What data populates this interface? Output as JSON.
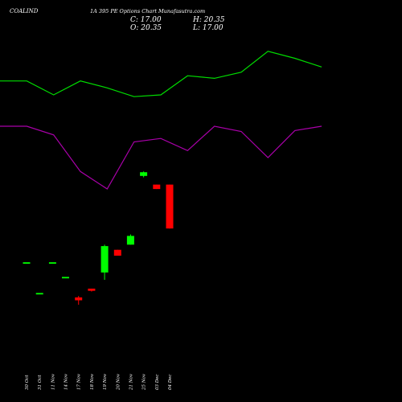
{
  "header": {
    "symbol": "COALIND",
    "title": "1A 395 PE Options  Chart Munafasutra.com",
    "close_label": "C: 17.00",
    "high_label": "H: 20.35",
    "open_label": "O: 20.35",
    "low_label": "L: 17.00"
  },
  "colors": {
    "background": "#000000",
    "up": "#00ff00",
    "down": "#ff0000",
    "text": "#ffffff",
    "indicator_upper": "#00dd00",
    "indicator_lower": "#aa00aa"
  },
  "chart_data": [
    {
      "type": "line",
      "title": "",
      "series": [
        {
          "color": "#00dd00",
          "values": [
            9.2,
            9.2,
            8.4,
            9.2,
            8.8,
            8.3,
            8.4,
            9.5,
            9.35,
            9.7,
            10.9,
            10.5,
            10.0
          ]
        },
        {
          "color": "#aa00aa",
          "values": [
            6.6,
            6.6,
            6.1,
            4.0,
            3.0,
            5.7,
            5.9,
            5.2,
            6.6,
            6.3,
            4.8,
            6.35,
            6.6
          ]
        }
      ],
      "ylim": [
        0,
        12
      ]
    },
    {
      "type": "candlestick",
      "title": "",
      "categories": [
        "30 Oct",
        "31 Oct",
        "11 Nov",
        "14 Nov",
        "17 Nov",
        "18 Nov",
        "19 Nov",
        "20 Nov",
        "21 Nov",
        "25 Nov",
        "03 Dec",
        "04 Dec"
      ],
      "candles": [
        {
          "open": 11.6,
          "high": 11.6,
          "low": 11.6,
          "close": 11.7,
          "direction": "up"
        },
        {
          "open": 9.5,
          "high": 9.5,
          "low": 9.5,
          "close": 9.6,
          "direction": "up"
        },
        {
          "open": 11.6,
          "high": 11.6,
          "low": 11.6,
          "close": 11.7,
          "direction": "up"
        },
        {
          "open": 10.6,
          "high": 10.6,
          "low": 10.6,
          "close": 10.7,
          "direction": "up"
        },
        {
          "open": 9.3,
          "high": 9.4,
          "low": 8.8,
          "close": 9.1,
          "direction": "down"
        },
        {
          "open": 9.9,
          "high": 9.9,
          "low": 9.7,
          "close": 9.75,
          "direction": "down"
        },
        {
          "open": 11.0,
          "high": 12.9,
          "low": 10.5,
          "close": 12.8,
          "direction": "up"
        },
        {
          "open": 12.55,
          "high": 12.55,
          "low": 12.15,
          "close": 12.15,
          "direction": "down"
        },
        {
          "open": 12.9,
          "high": 13.6,
          "low": 12.9,
          "close": 13.5,
          "direction": "up"
        },
        {
          "open": 17.6,
          "high": 17.9,
          "low": 17.5,
          "close": 17.85,
          "direction": "up"
        },
        {
          "open": 17.0,
          "high": 17.0,
          "low": 16.7,
          "close": 16.7,
          "direction": "down"
        },
        {
          "open": 17.0,
          "high": 17.0,
          "low": 14.0,
          "close": 14.0,
          "direction": "down"
        }
      ],
      "ylim": [
        6,
        20
      ]
    }
  ]
}
